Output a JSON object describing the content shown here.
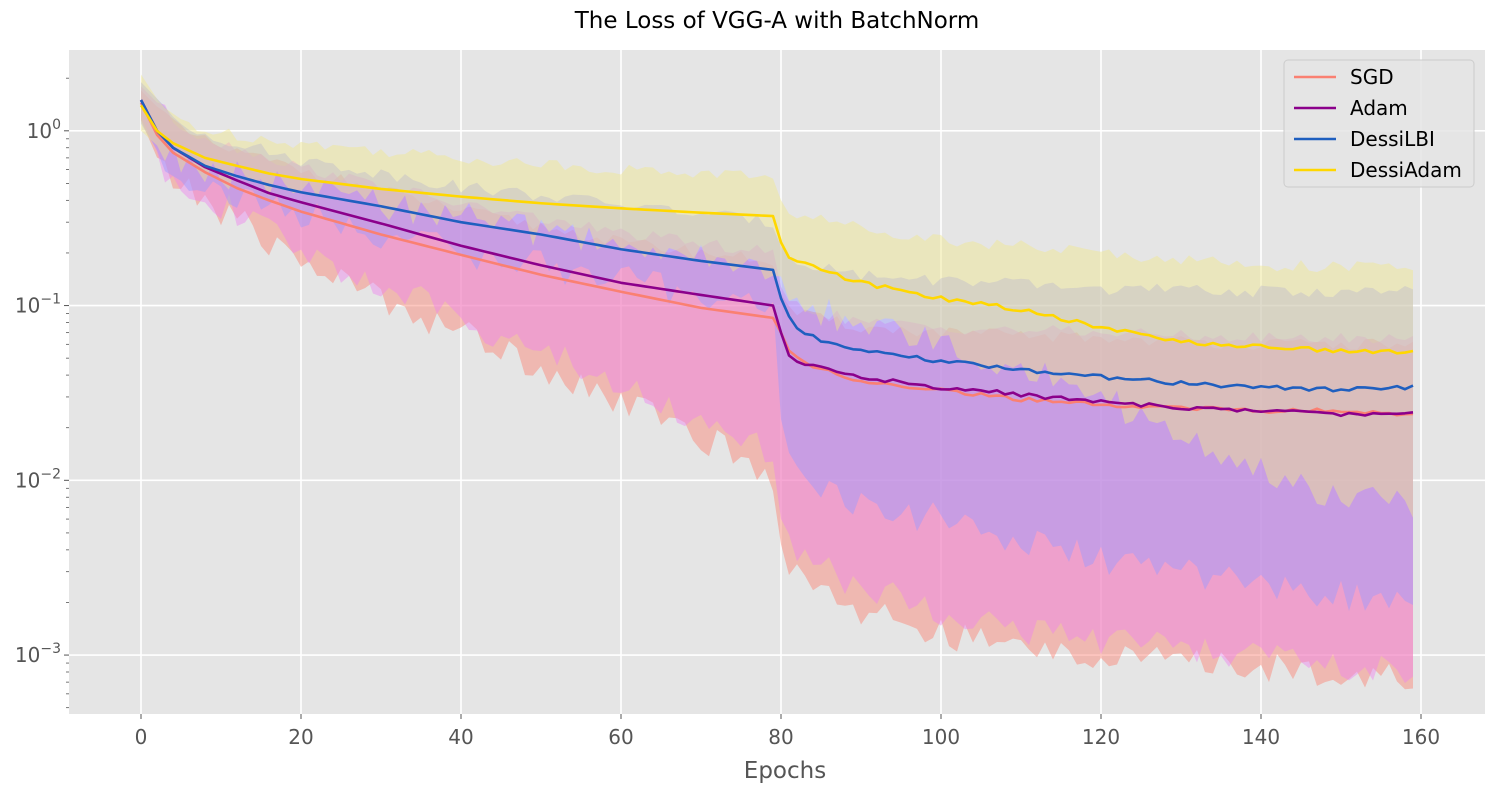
{
  "chart_data": {
    "type": "line",
    "title": "The Loss of VGG-A with BatchNorm",
    "xlabel": "Epochs",
    "ylabel": "",
    "xlim": [
      -9,
      168
    ],
    "ylim": [
      0.00046,
      2.9
    ],
    "yscale": "log",
    "grid": true,
    "legend_position": "top-right",
    "x_ticks": [
      0,
      20,
      40,
      60,
      80,
      100,
      120,
      140,
      160
    ],
    "y_ticks": [
      {
        "value": 1,
        "base": "10",
        "exp": "0"
      },
      {
        "value": 0.1,
        "base": "10",
        "exp": "−1"
      },
      {
        "value": 0.01,
        "base": "10",
        "exp": "−2"
      },
      {
        "value": 0.001,
        "base": "10",
        "exp": "−3"
      }
    ],
    "series": [
      {
        "name": "SGD",
        "color": "#fa8072",
        "band_color": "#fa8072",
        "mean": [
          [
            0,
            1.45
          ],
          [
            2,
            0.95
          ],
          [
            4,
            0.75
          ],
          [
            8,
            0.58
          ],
          [
            12,
            0.47
          ],
          [
            16,
            0.4
          ],
          [
            20,
            0.345
          ],
          [
            30,
            0.255
          ],
          [
            40,
            0.195
          ],
          [
            50,
            0.15
          ],
          [
            60,
            0.12
          ],
          [
            70,
            0.097
          ],
          [
            79,
            0.085
          ],
          [
            80,
            0.07
          ],
          [
            81,
            0.055
          ],
          [
            82,
            0.05
          ],
          [
            85,
            0.043
          ],
          [
            90,
            0.037
          ],
          [
            100,
            0.033
          ],
          [
            110,
            0.029
          ],
          [
            120,
            0.027
          ],
          [
            130,
            0.026
          ],
          [
            140,
            0.025
          ],
          [
            150,
            0.025
          ],
          [
            159,
            0.024
          ]
        ],
        "upper": [
          [
            0,
            1.7
          ],
          [
            5,
            1.0
          ],
          [
            10,
            0.8
          ],
          [
            20,
            0.6
          ],
          [
            40,
            0.35
          ],
          [
            60,
            0.23
          ],
          [
            79,
            0.18
          ],
          [
            80,
            0.11
          ],
          [
            82,
            0.09
          ],
          [
            90,
            0.075
          ],
          [
            100,
            0.07
          ],
          [
            120,
            0.065
          ],
          [
            140,
            0.06
          ],
          [
            159,
            0.06
          ]
        ],
        "lower": [
          [
            0,
            1.15
          ],
          [
            3,
            0.55
          ],
          [
            8,
            0.4
          ],
          [
            15,
            0.25
          ],
          [
            20,
            0.18
          ],
          [
            30,
            0.11
          ],
          [
            40,
            0.07
          ],
          [
            50,
            0.045
          ],
          [
            60,
            0.028
          ],
          [
            70,
            0.018
          ],
          [
            79,
            0.01
          ],
          [
            80,
            0.004
          ],
          [
            82,
            0.003
          ],
          [
            85,
            0.0025
          ],
          [
            90,
            0.0018
          ],
          [
            100,
            0.0013
          ],
          [
            110,
            0.0011
          ],
          [
            120,
            0.001
          ],
          [
            130,
            0.0009
          ],
          [
            140,
            0.00085
          ],
          [
            150,
            0.0008
          ],
          [
            159,
            0.00075
          ]
        ]
      },
      {
        "name": "Adam",
        "color": "#8b008b",
        "band_color": "#ee82ee",
        "mean": [
          [
            0,
            1.5
          ],
          [
            2,
            1.0
          ],
          [
            4,
            0.8
          ],
          [
            8,
            0.62
          ],
          [
            12,
            0.52
          ],
          [
            16,
            0.44
          ],
          [
            20,
            0.39
          ],
          [
            30,
            0.295
          ],
          [
            40,
            0.22
          ],
          [
            50,
            0.17
          ],
          [
            60,
            0.135
          ],
          [
            70,
            0.115
          ],
          [
            79,
            0.1
          ],
          [
            80,
            0.07
          ],
          [
            81,
            0.053
          ],
          [
            82,
            0.048
          ],
          [
            85,
            0.044
          ],
          [
            90,
            0.039
          ],
          [
            100,
            0.034
          ],
          [
            110,
            0.031
          ],
          [
            120,
            0.028
          ],
          [
            130,
            0.026
          ],
          [
            140,
            0.025
          ],
          [
            150,
            0.024
          ],
          [
            159,
            0.024
          ]
        ],
        "upper": [
          [
            0,
            1.8
          ],
          [
            5,
            1.05
          ],
          [
            10,
            0.85
          ],
          [
            20,
            0.62
          ],
          [
            40,
            0.38
          ],
          [
            60,
            0.26
          ],
          [
            79,
            0.2
          ],
          [
            80,
            0.12
          ],
          [
            82,
            0.1
          ],
          [
            90,
            0.08
          ],
          [
            100,
            0.075
          ],
          [
            120,
            0.07
          ],
          [
            140,
            0.065
          ],
          [
            159,
            0.065
          ]
        ],
        "lower": [
          [
            0,
            1.2
          ],
          [
            3,
            0.6
          ],
          [
            8,
            0.43
          ],
          [
            15,
            0.28
          ],
          [
            20,
            0.2
          ],
          [
            30,
            0.13
          ],
          [
            40,
            0.085
          ],
          [
            50,
            0.055
          ],
          [
            60,
            0.035
          ],
          [
            70,
            0.022
          ],
          [
            79,
            0.014
          ],
          [
            80,
            0.005
          ],
          [
            82,
            0.004
          ],
          [
            85,
            0.0032
          ],
          [
            90,
            0.0024
          ],
          [
            100,
            0.0018
          ],
          [
            110,
            0.0014
          ],
          [
            120,
            0.0012
          ],
          [
            130,
            0.0011
          ],
          [
            140,
            0.001
          ],
          [
            150,
            0.00085
          ],
          [
            159,
            0.0008
          ]
        ]
      },
      {
        "name": "DessiLBI",
        "color": "#1f5fbf",
        "band_color": "#9999ff",
        "mean": [
          [
            0,
            1.5
          ],
          [
            2,
            1.0
          ],
          [
            4,
            0.8
          ],
          [
            8,
            0.63
          ],
          [
            12,
            0.55
          ],
          [
            16,
            0.49
          ],
          [
            20,
            0.445
          ],
          [
            30,
            0.37
          ],
          [
            40,
            0.3
          ],
          [
            50,
            0.255
          ],
          [
            60,
            0.21
          ],
          [
            70,
            0.18
          ],
          [
            79,
            0.16
          ],
          [
            80,
            0.11
          ],
          [
            81,
            0.085
          ],
          [
            82,
            0.075
          ],
          [
            85,
            0.062
          ],
          [
            90,
            0.055
          ],
          [
            100,
            0.048
          ],
          [
            110,
            0.043
          ],
          [
            120,
            0.039
          ],
          [
            130,
            0.036
          ],
          [
            140,
            0.034
          ],
          [
            150,
            0.033
          ],
          [
            159,
            0.034
          ]
        ],
        "upper": [
          [
            0,
            1.9
          ],
          [
            5,
            1.1
          ],
          [
            10,
            0.9
          ],
          [
            20,
            0.68
          ],
          [
            40,
            0.48
          ],
          [
            60,
            0.38
          ],
          [
            79,
            0.3
          ],
          [
            80,
            0.22
          ],
          [
            82,
            0.18
          ],
          [
            90,
            0.15
          ],
          [
            100,
            0.14
          ],
          [
            120,
            0.125
          ],
          [
            140,
            0.12
          ],
          [
            159,
            0.12
          ]
        ],
        "lower": [
          [
            0,
            1.1
          ],
          [
            3,
            0.65
          ],
          [
            8,
            0.48
          ],
          [
            15,
            0.38
          ],
          [
            20,
            0.33
          ],
          [
            30,
            0.26
          ],
          [
            40,
            0.2
          ],
          [
            50,
            0.17
          ],
          [
            60,
            0.14
          ],
          [
            70,
            0.115
          ],
          [
            79,
            0.1
          ],
          [
            80,
            0.02
          ],
          [
            82,
            0.012
          ],
          [
            85,
            0.009
          ],
          [
            90,
            0.007
          ],
          [
            100,
            0.006
          ],
          [
            110,
            0.0045
          ],
          [
            120,
            0.0035
          ],
          [
            130,
            0.003
          ],
          [
            140,
            0.0025
          ],
          [
            150,
            0.0022
          ],
          [
            159,
            0.002
          ]
        ]
      },
      {
        "name": "DessiAdam",
        "color": "#ffd700",
        "band_color": "#f0e68c",
        "mean": [
          [
            0,
            1.4
          ],
          [
            2,
            1.0
          ],
          [
            4,
            0.85
          ],
          [
            8,
            0.7
          ],
          [
            12,
            0.63
          ],
          [
            16,
            0.57
          ],
          [
            20,
            0.53
          ],
          [
            30,
            0.465
          ],
          [
            40,
            0.42
          ],
          [
            50,
            0.385
          ],
          [
            60,
            0.36
          ],
          [
            70,
            0.34
          ],
          [
            79,
            0.325
          ],
          [
            80,
            0.23
          ],
          [
            81,
            0.19
          ],
          [
            82,
            0.18
          ],
          [
            85,
            0.16
          ],
          [
            90,
            0.135
          ],
          [
            100,
            0.11
          ],
          [
            110,
            0.095
          ],
          [
            120,
            0.075
          ],
          [
            130,
            0.062
          ],
          [
            140,
            0.058
          ],
          [
            150,
            0.055
          ],
          [
            159,
            0.054
          ]
        ],
        "upper": [
          [
            0,
            2.1
          ],
          [
            3,
            1.3
          ],
          [
            8,
            1.0
          ],
          [
            20,
            0.85
          ],
          [
            40,
            0.7
          ],
          [
            60,
            0.6
          ],
          [
            79,
            0.55
          ],
          [
            80,
            0.38
          ],
          [
            82,
            0.33
          ],
          [
            90,
            0.28
          ],
          [
            100,
            0.24
          ],
          [
            120,
            0.2
          ],
          [
            140,
            0.17
          ],
          [
            159,
            0.165
          ]
        ],
        "lower": [
          [
            0,
            1.0
          ],
          [
            3,
            0.75
          ],
          [
            8,
            0.6
          ],
          [
            20,
            0.45
          ],
          [
            40,
            0.32
          ],
          [
            60,
            0.22
          ],
          [
            79,
            0.16
          ],
          [
            80,
            0.12
          ],
          [
            82,
            0.1
          ],
          [
            90,
            0.08
          ],
          [
            100,
            0.06
          ],
          [
            110,
            0.045
          ],
          [
            120,
            0.03
          ],
          [
            130,
            0.018
          ],
          [
            140,
            0.011
          ],
          [
            150,
            0.008
          ],
          [
            159,
            0.007
          ]
        ]
      }
    ]
  }
}
